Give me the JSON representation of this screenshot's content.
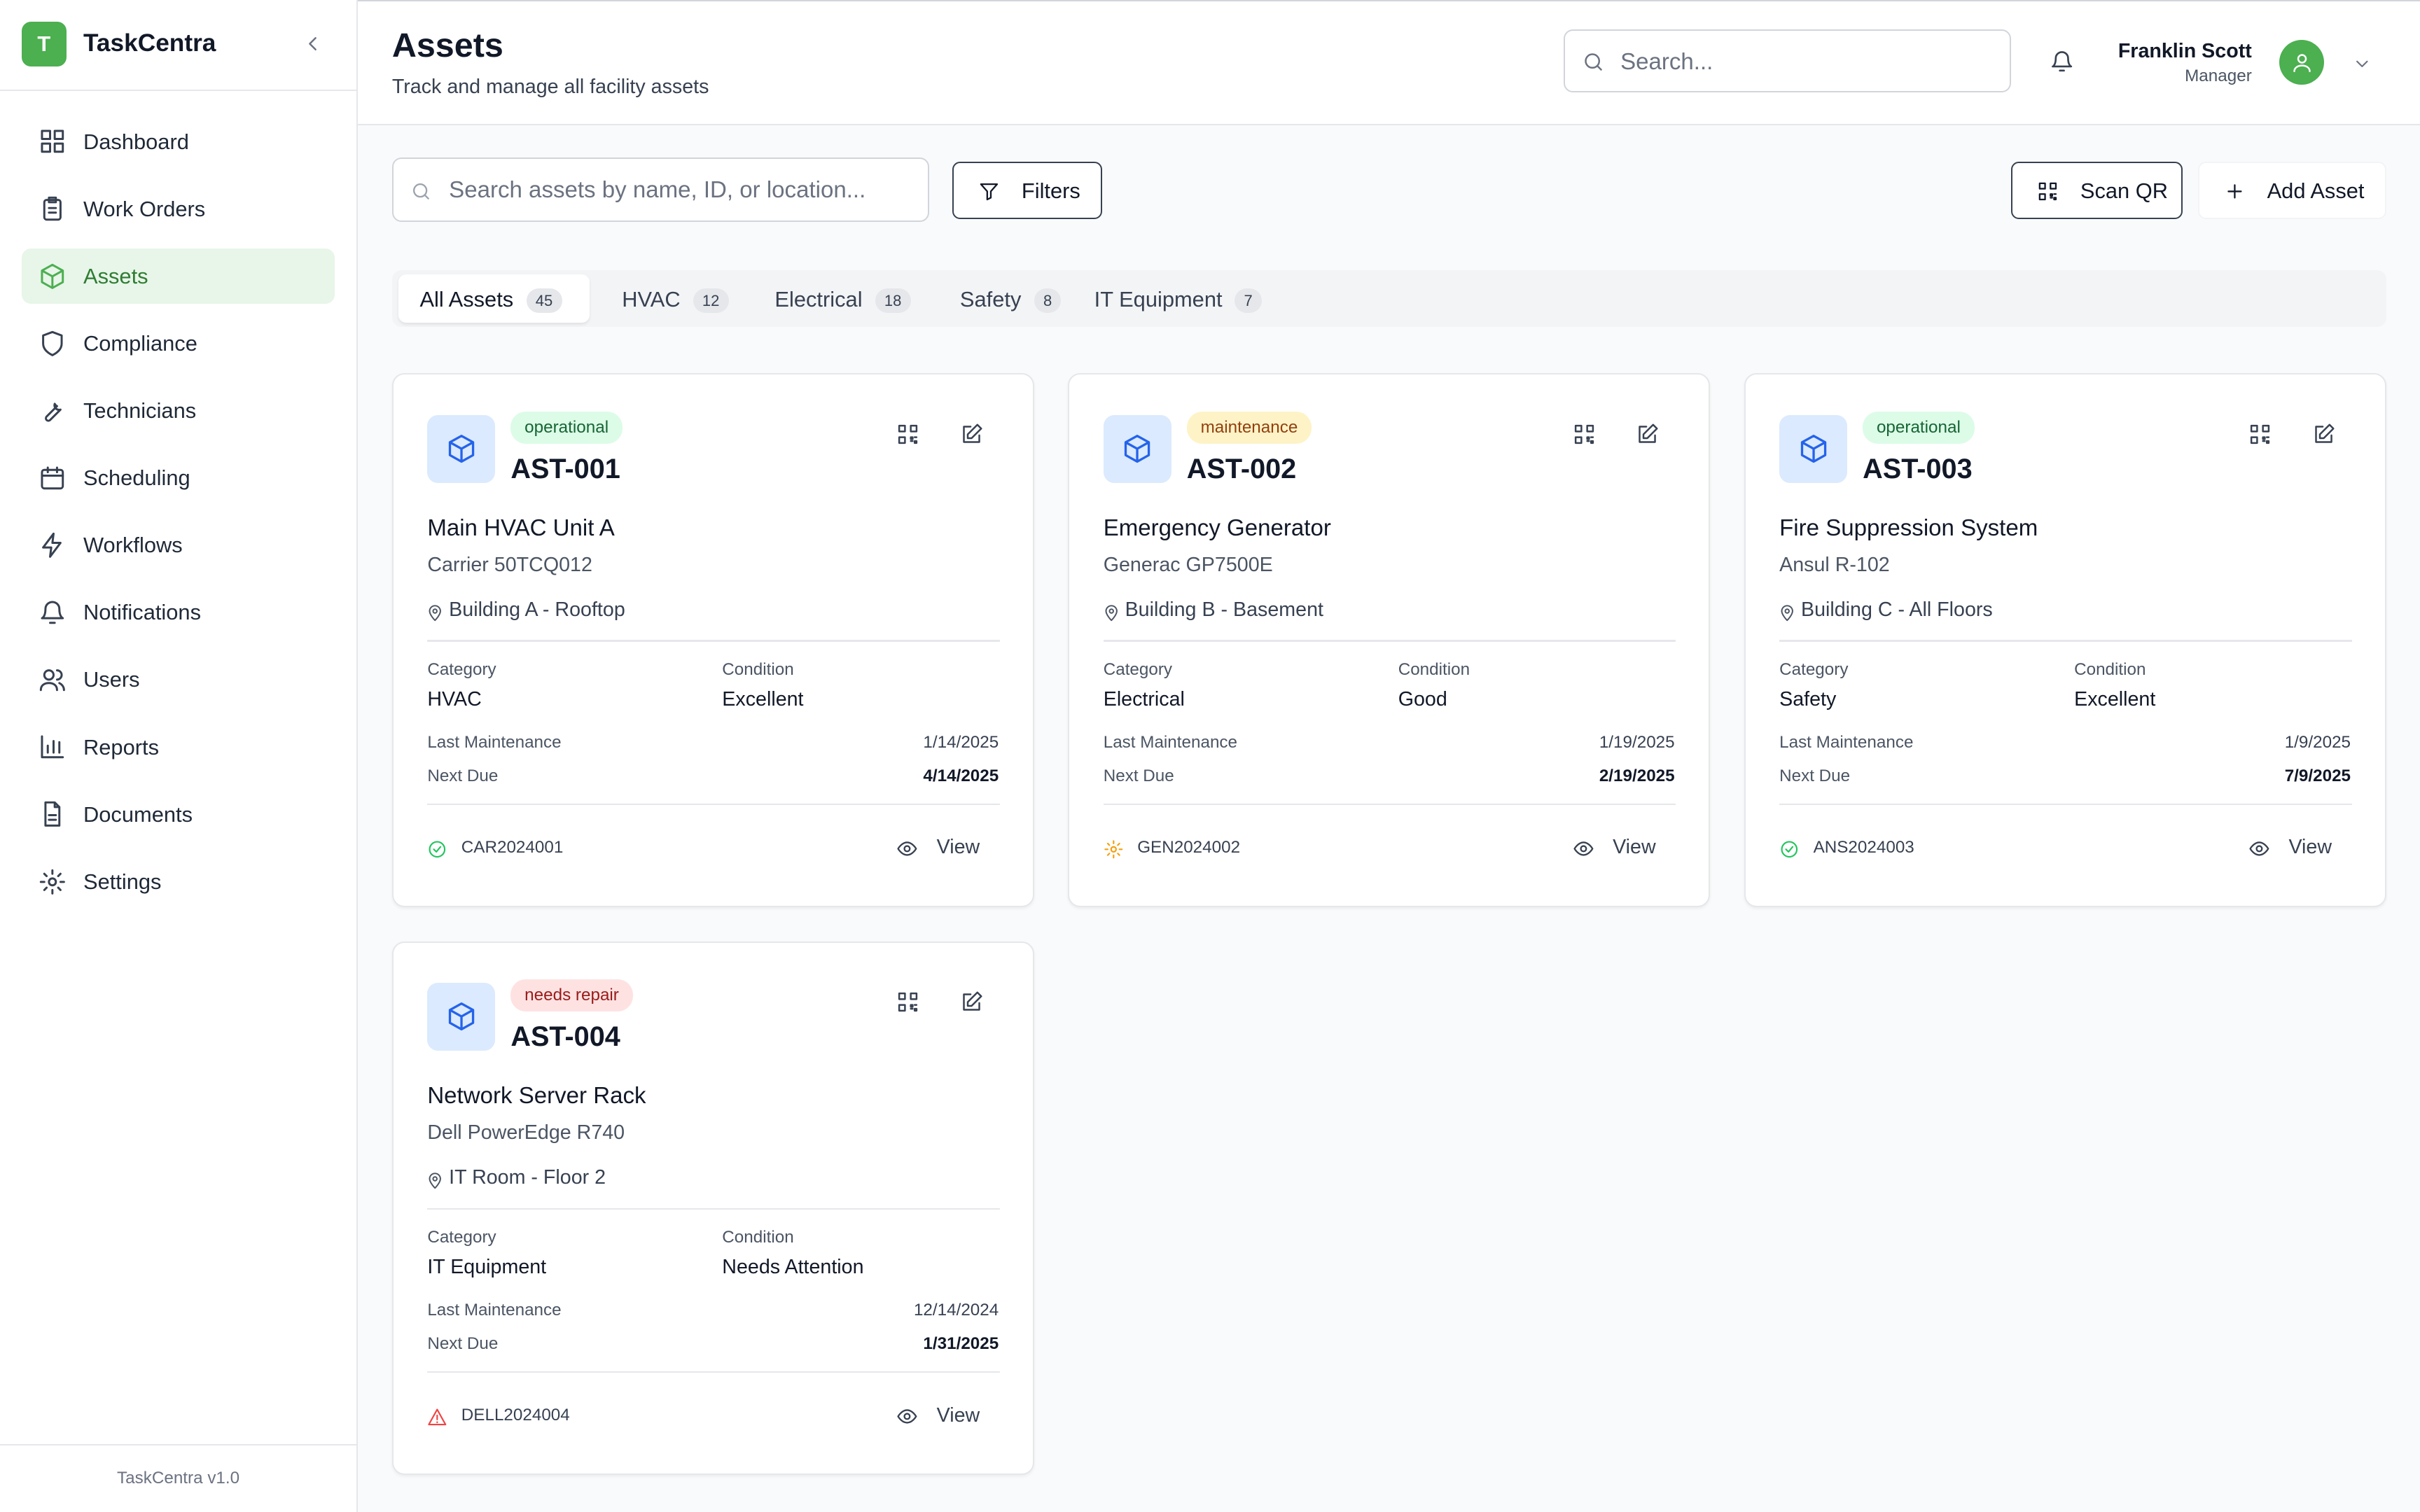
{
  "sidebar": {
    "logo_letter": "T",
    "app_name": "TaskCentra",
    "footer": "TaskCentra v1.0",
    "nav": [
      {
        "label": "Dashboard",
        "active": false
      },
      {
        "label": "Work Orders",
        "active": false
      },
      {
        "label": "Assets",
        "active": true
      },
      {
        "label": "Compliance",
        "active": false
      },
      {
        "label": "Technicians",
        "active": false
      },
      {
        "label": "Scheduling",
        "active": false
      },
      {
        "label": "Workflows",
        "active": false
      },
      {
        "label": "Notifications",
        "active": false
      },
      {
        "label": "Users",
        "active": false
      },
      {
        "label": "Reports",
        "active": false
      },
      {
        "label": "Documents",
        "active": false
      },
      {
        "label": "Settings",
        "active": false
      }
    ]
  },
  "header": {
    "title": "Assets",
    "subtitle": "Track and manage all facility assets",
    "search_placeholder": "Search...",
    "user": {
      "name": "Franklin Scott",
      "role": "Manager"
    }
  },
  "toolbar": {
    "search_placeholder": "Search assets by name, ID, or location...",
    "filters": "Filters",
    "scan_qr": "Scan QR",
    "add_asset": "Add Asset"
  },
  "tabs": [
    {
      "label": "All Assets",
      "count": 45,
      "active": true
    },
    {
      "label": "HVAC",
      "count": 12,
      "active": false
    },
    {
      "label": "Electrical",
      "count": 18,
      "active": false
    },
    {
      "label": "Safety",
      "count": 8,
      "active": false
    },
    {
      "label": "IT Equipment",
      "count": 7,
      "active": false
    }
  ],
  "field_labels": {
    "category": "Category",
    "condition": "Condition",
    "last_maintenance": "Last Maintenance",
    "next_due": "Next Due",
    "view": "View"
  },
  "assets": [
    {
      "status": "operational",
      "id": "AST-001",
      "name": "Main HVAC Unit A",
      "model": "Carrier 50TCQ012",
      "location": "Building A - Rooftop",
      "category": "HVAC",
      "condition": "Excellent",
      "last_maintenance": "1/14/2025",
      "next_due": "4/14/2025",
      "serial": "CAR2024001"
    },
    {
      "status": "maintenance",
      "id": "AST-002",
      "name": "Emergency Generator",
      "model": "Generac GP7500E",
      "location": "Building B - Basement",
      "category": "Electrical",
      "condition": "Good",
      "last_maintenance": "1/19/2025",
      "next_due": "2/19/2025",
      "serial": "GEN2024002"
    },
    {
      "status": "operational",
      "id": "AST-003",
      "name": "Fire Suppression System",
      "model": "Ansul R-102",
      "location": "Building C - All Floors",
      "category": "Safety",
      "condition": "Excellent",
      "last_maintenance": "1/9/2025",
      "next_due": "7/9/2025",
      "serial": "ANS2024003"
    },
    {
      "status": "needs repair",
      "id": "AST-004",
      "name": "Network Server Rack",
      "model": "Dell PowerEdge R740",
      "location": "IT Room - Floor 2",
      "category": "IT Equipment",
      "condition": "Needs Attention",
      "last_maintenance": "12/14/2024",
      "next_due": "1/31/2025",
      "serial": "DELL2024004"
    }
  ]
}
